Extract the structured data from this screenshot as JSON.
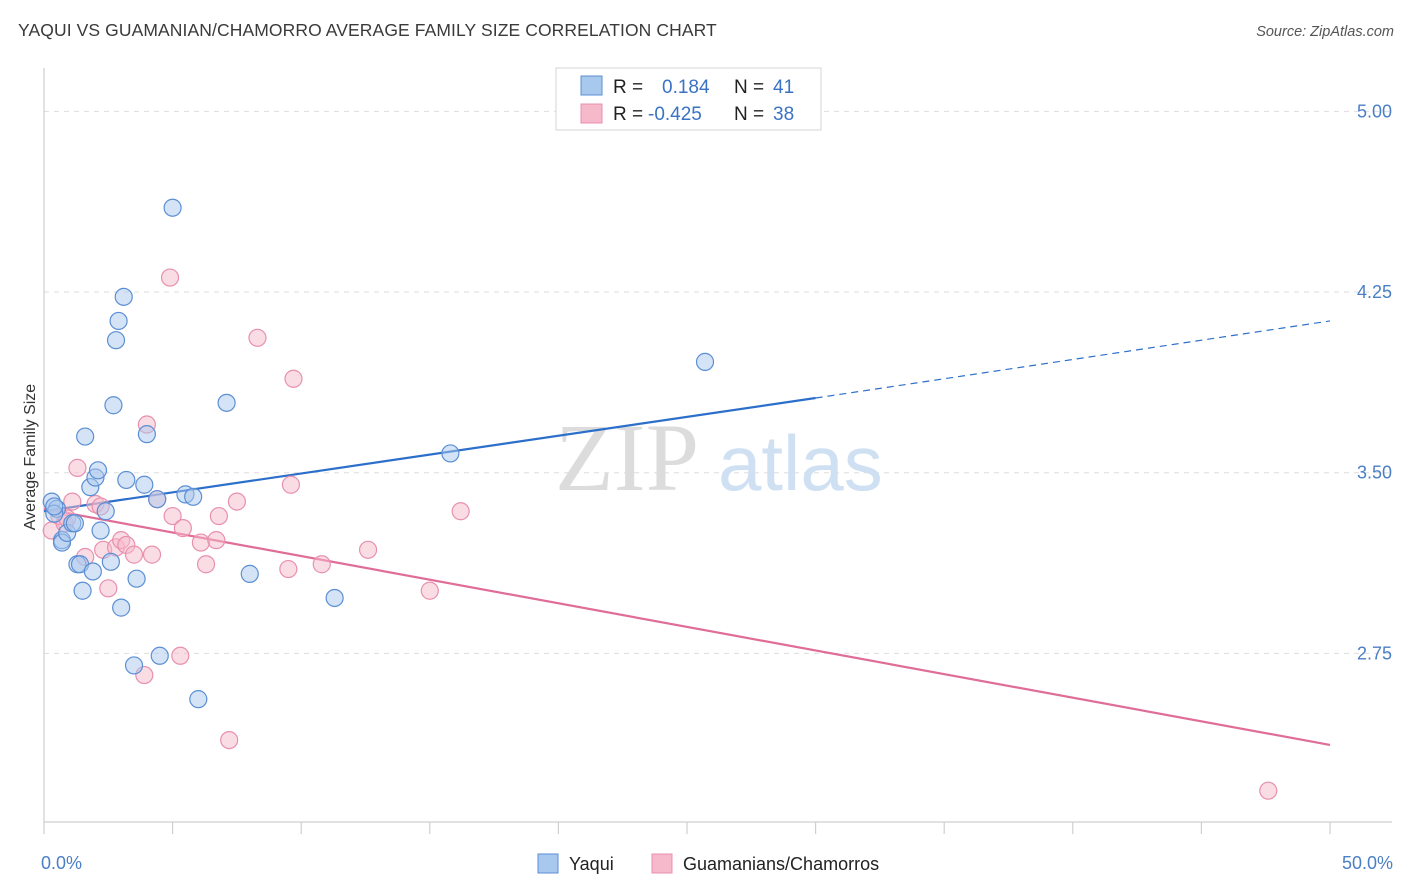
{
  "header": {
    "title": "YAQUI VS GUAMANIAN/CHAMORRO AVERAGE FAMILY SIZE CORRELATION CHART",
    "source": "Source: ZipAtlas.com"
  },
  "watermark": {
    "zip": "ZIP",
    "atlas": "atlas"
  },
  "legend": {
    "rows": [
      {
        "r_label": "R =",
        "r_value": "0.184",
        "n_label": "N =",
        "n_value": "41"
      },
      {
        "r_label": "R =",
        "r_value": "-0.425",
        "n_label": "N =",
        "n_value": "38"
      }
    ]
  },
  "colors": {
    "blue_fill": "#a9c8ee",
    "blue_stroke": "#5b8fd4",
    "blue_line": "#2c6fcb",
    "pink_fill": "#f6b9cc",
    "pink_stroke": "#e890ad",
    "pink_line": "#e06d97",
    "grid": "#dddddd",
    "tick_text": "#4a7fc6"
  },
  "chart_data": {
    "type": "scatter",
    "title": "YAQUI VS GUAMANIAN/CHAMORRO AVERAGE FAMILY SIZE CORRELATION CHART",
    "xlabel": "",
    "ylabel": "Average Family Size",
    "xlim": [
      0,
      50
    ],
    "ylim": [
      2.05,
      5.18
    ],
    "x_tick_labels": [
      "0.0%",
      "50.0%"
    ],
    "y_ticks": [
      2.75,
      3.5,
      4.25,
      5.0
    ],
    "y_tick_labels": [
      "2.75",
      "3.50",
      "4.25",
      "5.00"
    ],
    "series": [
      {
        "name": "Yaqui",
        "r": 0.184,
        "n": 41,
        "points": [
          [
            0.3,
            3.38
          ],
          [
            0.5,
            3.35
          ],
          [
            0.4,
            3.33
          ],
          [
            0.7,
            3.22
          ],
          [
            0.7,
            3.21
          ],
          [
            0.9,
            3.25
          ],
          [
            1.1,
            3.29
          ],
          [
            1.2,
            3.29
          ],
          [
            1.3,
            3.12
          ],
          [
            1.4,
            3.12
          ],
          [
            1.5,
            3.01
          ],
          [
            1.6,
            3.65
          ],
          [
            1.8,
            3.44
          ],
          [
            1.9,
            3.09
          ],
          [
            2.0,
            3.48
          ],
          [
            2.1,
            3.51
          ],
          [
            2.2,
            3.26
          ],
          [
            2.4,
            3.34
          ],
          [
            2.6,
            3.13
          ],
          [
            2.7,
            3.78
          ],
          [
            2.8,
            4.05
          ],
          [
            2.9,
            4.13
          ],
          [
            3.0,
            2.94
          ],
          [
            3.1,
            4.23
          ],
          [
            3.2,
            3.47
          ],
          [
            3.5,
            2.7
          ],
          [
            3.6,
            3.06
          ],
          [
            3.9,
            3.45
          ],
          [
            4.0,
            3.66
          ],
          [
            4.4,
            3.39
          ],
          [
            4.5,
            2.74
          ],
          [
            5.0,
            4.6
          ],
          [
            5.5,
            3.41
          ],
          [
            5.8,
            3.4
          ],
          [
            6.0,
            2.56
          ],
          [
            7.1,
            3.79
          ],
          [
            8.0,
            3.08
          ],
          [
            11.3,
            2.98
          ],
          [
            15.8,
            3.58
          ],
          [
            25.7,
            3.96
          ],
          [
            0.4,
            3.36
          ]
        ],
        "trend": {
          "x0": 0,
          "y0": 3.34,
          "x1": 30,
          "y1": 3.81,
          "dashed_to_x": 50,
          "dashed_to_y": 4.13
        }
      },
      {
        "name": "Guamanians/Chamorros",
        "r": -0.425,
        "n": 38,
        "points": [
          [
            0.3,
            3.26
          ],
          [
            0.6,
            3.32
          ],
          [
            0.8,
            3.29
          ],
          [
            0.9,
            3.31
          ],
          [
            1.1,
            3.38
          ],
          [
            1.3,
            3.52
          ],
          [
            1.6,
            3.15
          ],
          [
            2.0,
            3.37
          ],
          [
            2.2,
            3.36
          ],
          [
            2.3,
            3.18
          ],
          [
            2.5,
            3.02
          ],
          [
            2.8,
            3.19
          ],
          [
            3.0,
            3.22
          ],
          [
            3.2,
            3.2
          ],
          [
            3.5,
            3.16
          ],
          [
            3.9,
            2.66
          ],
          [
            4.0,
            3.7
          ],
          [
            4.2,
            3.16
          ],
          [
            4.4,
            3.39
          ],
          [
            4.9,
            4.31
          ],
          [
            5.0,
            3.32
          ],
          [
            5.3,
            2.74
          ],
          [
            5.4,
            3.27
          ],
          [
            6.1,
            3.21
          ],
          [
            6.3,
            3.12
          ],
          [
            6.7,
            3.22
          ],
          [
            6.8,
            3.32
          ],
          [
            7.2,
            2.39
          ],
          [
            7.5,
            3.38
          ],
          [
            8.3,
            4.06
          ],
          [
            9.5,
            3.1
          ],
          [
            9.6,
            3.45
          ],
          [
            9.7,
            3.89
          ],
          [
            10.8,
            3.12
          ],
          [
            12.6,
            3.18
          ],
          [
            15.0,
            3.01
          ],
          [
            16.2,
            3.34
          ],
          [
            47.6,
            2.18
          ]
        ],
        "trend": {
          "x0": 0,
          "y0": 3.35,
          "x1": 50,
          "y1": 2.37
        }
      }
    ]
  }
}
